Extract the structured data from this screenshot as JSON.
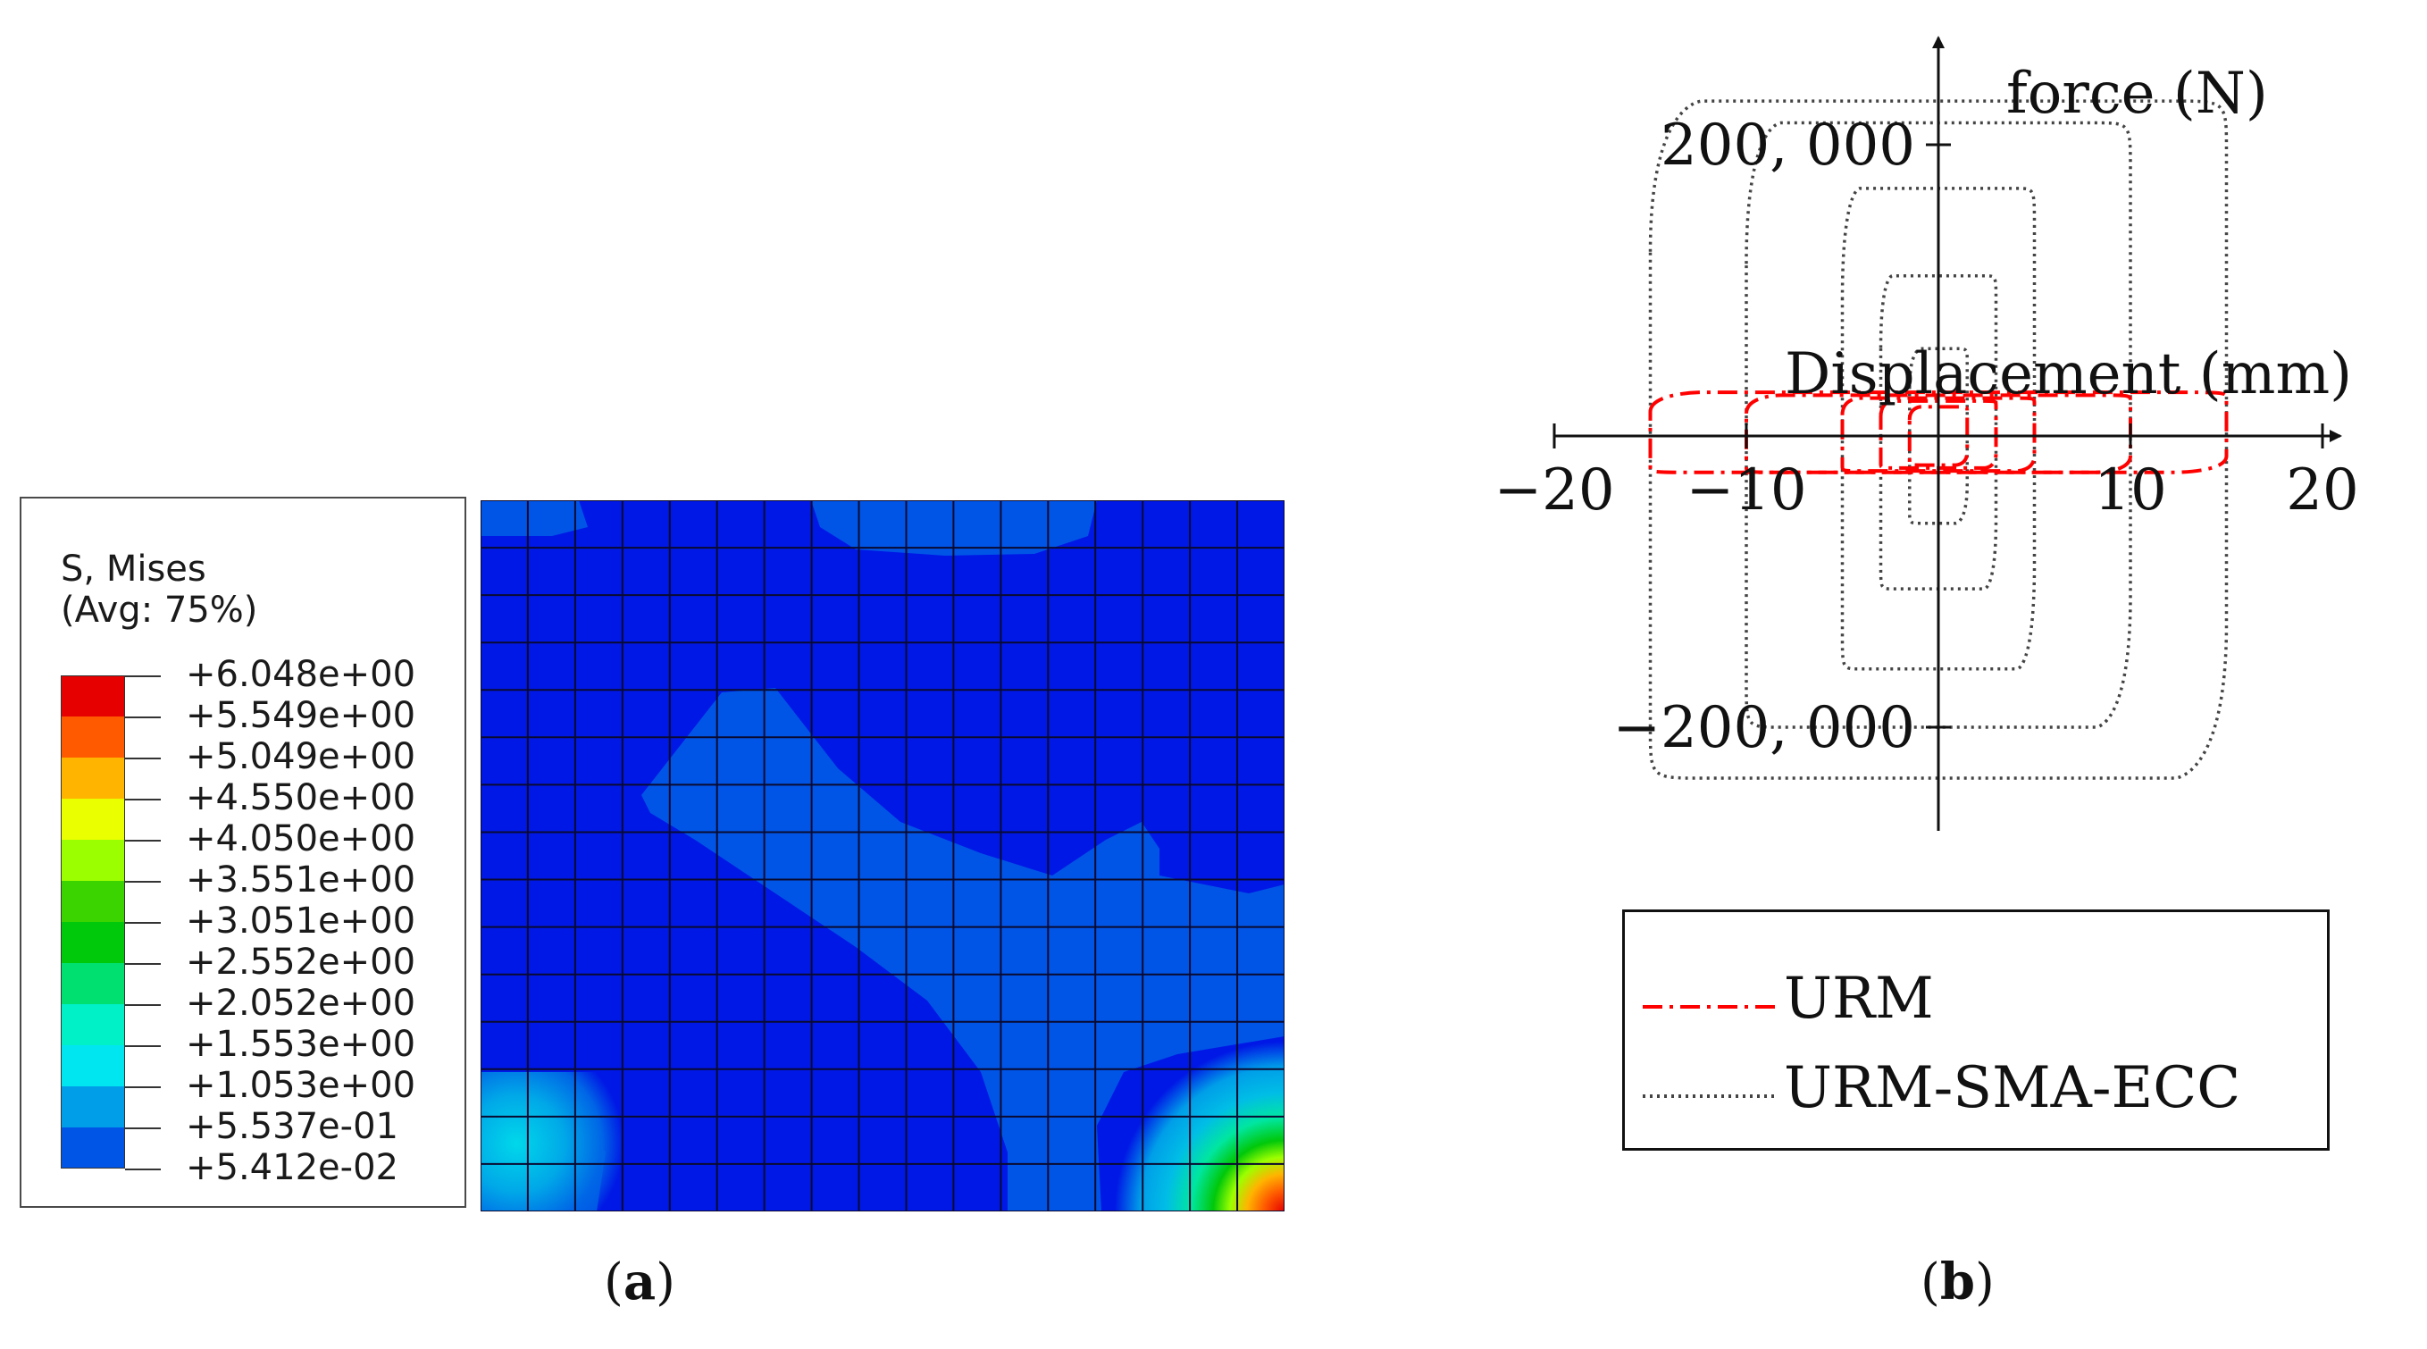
{
  "panel_a": {
    "legend": {
      "title_line1": "S, Mises",
      "title_line2": "(Avg: 75%)",
      "levels": [
        {
          "label": "+6.048e+00",
          "color": "#e60000"
        },
        {
          "label": "+5.549e+00",
          "color": "#ff5a00"
        },
        {
          "label": "+5.049e+00",
          "color": "#ffb400"
        },
        {
          "label": "+4.550e+00",
          "color": "#eaff00"
        },
        {
          "label": "+4.050e+00",
          "color": "#9cff00"
        },
        {
          "label": "+3.551e+00",
          "color": "#3cd400"
        },
        {
          "label": "+3.051e+00",
          "color": "#00c80a"
        },
        {
          "label": "+2.552e+00",
          "color": "#00e070"
        },
        {
          "label": "+2.052e+00",
          "color": "#00f0c8"
        },
        {
          "label": "+1.553e+00",
          "color": "#00e6f0"
        },
        {
          "label": "+1.053e+00",
          "color": "#009ee8"
        },
        {
          "label": "+5.537e-01",
          "color": "#0055e6"
        },
        {
          "label": "+5.412e-02",
          "color": "#0018e6"
        }
      ]
    },
    "caption": "a"
  },
  "panel_b": {
    "caption": "b",
    "chart_data": {
      "type": "line",
      "xlabel": "Displacement (mm)",
      "ylabel": "force (N)",
      "xlim": [
        -20,
        20
      ],
      "ylim": [
        -250000,
        250000
      ],
      "x_ticks": [
        -20,
        -10,
        10,
        20
      ],
      "x_tick_labels": [
        "−20",
        "−10",
        "10",
        "20"
      ],
      "y_ticks": [
        200000,
        -200000
      ],
      "y_tick_labels": [
        "200, 000",
        "−200, 000"
      ],
      "legend_placement": "bottom",
      "series": [
        {
          "name": "URM",
          "style": "dash-dot",
          "color": "#ff0000",
          "loops": [
            {
              "amp": 15,
              "fmax": 30000,
              "fmin": -25000
            },
            {
              "amp": 10,
              "fmax": 28000,
              "fmin": -25000
            },
            {
              "amp": 5,
              "fmax": 26000,
              "fmin": -24000
            },
            {
              "amp": 3,
              "fmax": 24000,
              "fmin": -22000
            },
            {
              "amp": 1.5,
              "fmax": 20000,
              "fmin": -20000
            }
          ]
        },
        {
          "name": "URM-SMA-ECC",
          "style": "dotted",
          "color": "#444444",
          "loops": [
            {
              "amp": 15,
              "fmax": 230000,
              "fmin": -235000
            },
            {
              "amp": 10,
              "fmax": 215000,
              "fmin": -200000
            },
            {
              "amp": 5,
              "fmax": 170000,
              "fmin": -160000
            },
            {
              "amp": 3,
              "fmax": 110000,
              "fmin": -105000
            },
            {
              "amp": 1.5,
              "fmax": 60000,
              "fmin": -60000
            }
          ]
        }
      ]
    }
  }
}
